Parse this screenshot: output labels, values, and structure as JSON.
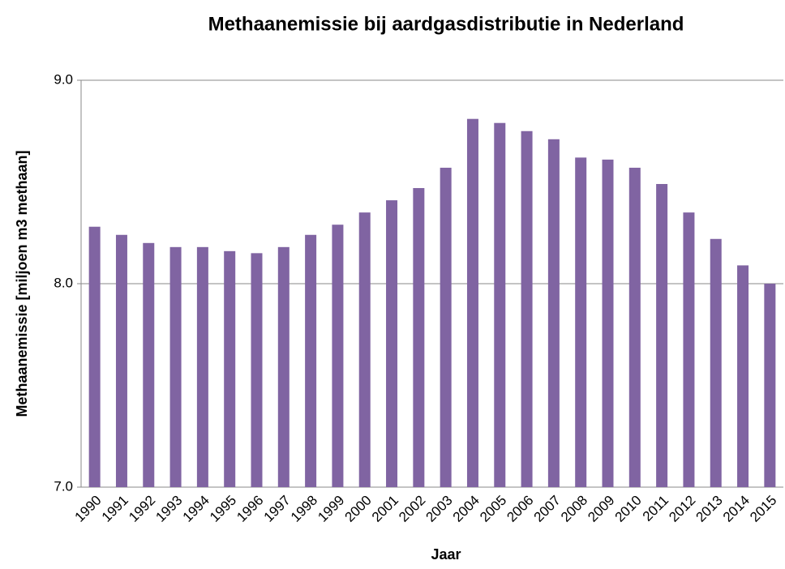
{
  "chart_data": {
    "type": "bar",
    "title": "Methaanemissie bij aardgasdistributie in Nederland",
    "x_label": "Jaar",
    "y_label": "Methaanemissie [miljoen m3 methaan]",
    "categories": [
      "1990",
      "1991",
      "1992",
      "1993",
      "1994",
      "1995",
      "1996",
      "1997",
      "1998",
      "1999",
      "2000",
      "2001",
      "2002",
      "2003",
      "2004",
      "2005",
      "2006",
      "2007",
      "2008",
      "2009",
      "2010",
      "2011",
      "2012",
      "2013",
      "2014",
      "2015"
    ],
    "values": [
      8.28,
      8.24,
      8.2,
      8.18,
      8.18,
      8.16,
      8.15,
      8.18,
      8.24,
      8.29,
      8.35,
      8.41,
      8.47,
      8.57,
      8.81,
      8.79,
      8.75,
      8.71,
      8.62,
      8.61,
      8.57,
      8.49,
      8.35,
      8.22,
      8.09,
      8.0
    ],
    "color": "#8064a2",
    "ylim": [
      7,
      9
    ],
    "yticks": [
      {
        "value": 7,
        "label": "7.0"
      },
      {
        "value": 8,
        "label": "8.0"
      },
      {
        "value": 9,
        "label": "9.0"
      }
    ],
    "grid": true
  }
}
